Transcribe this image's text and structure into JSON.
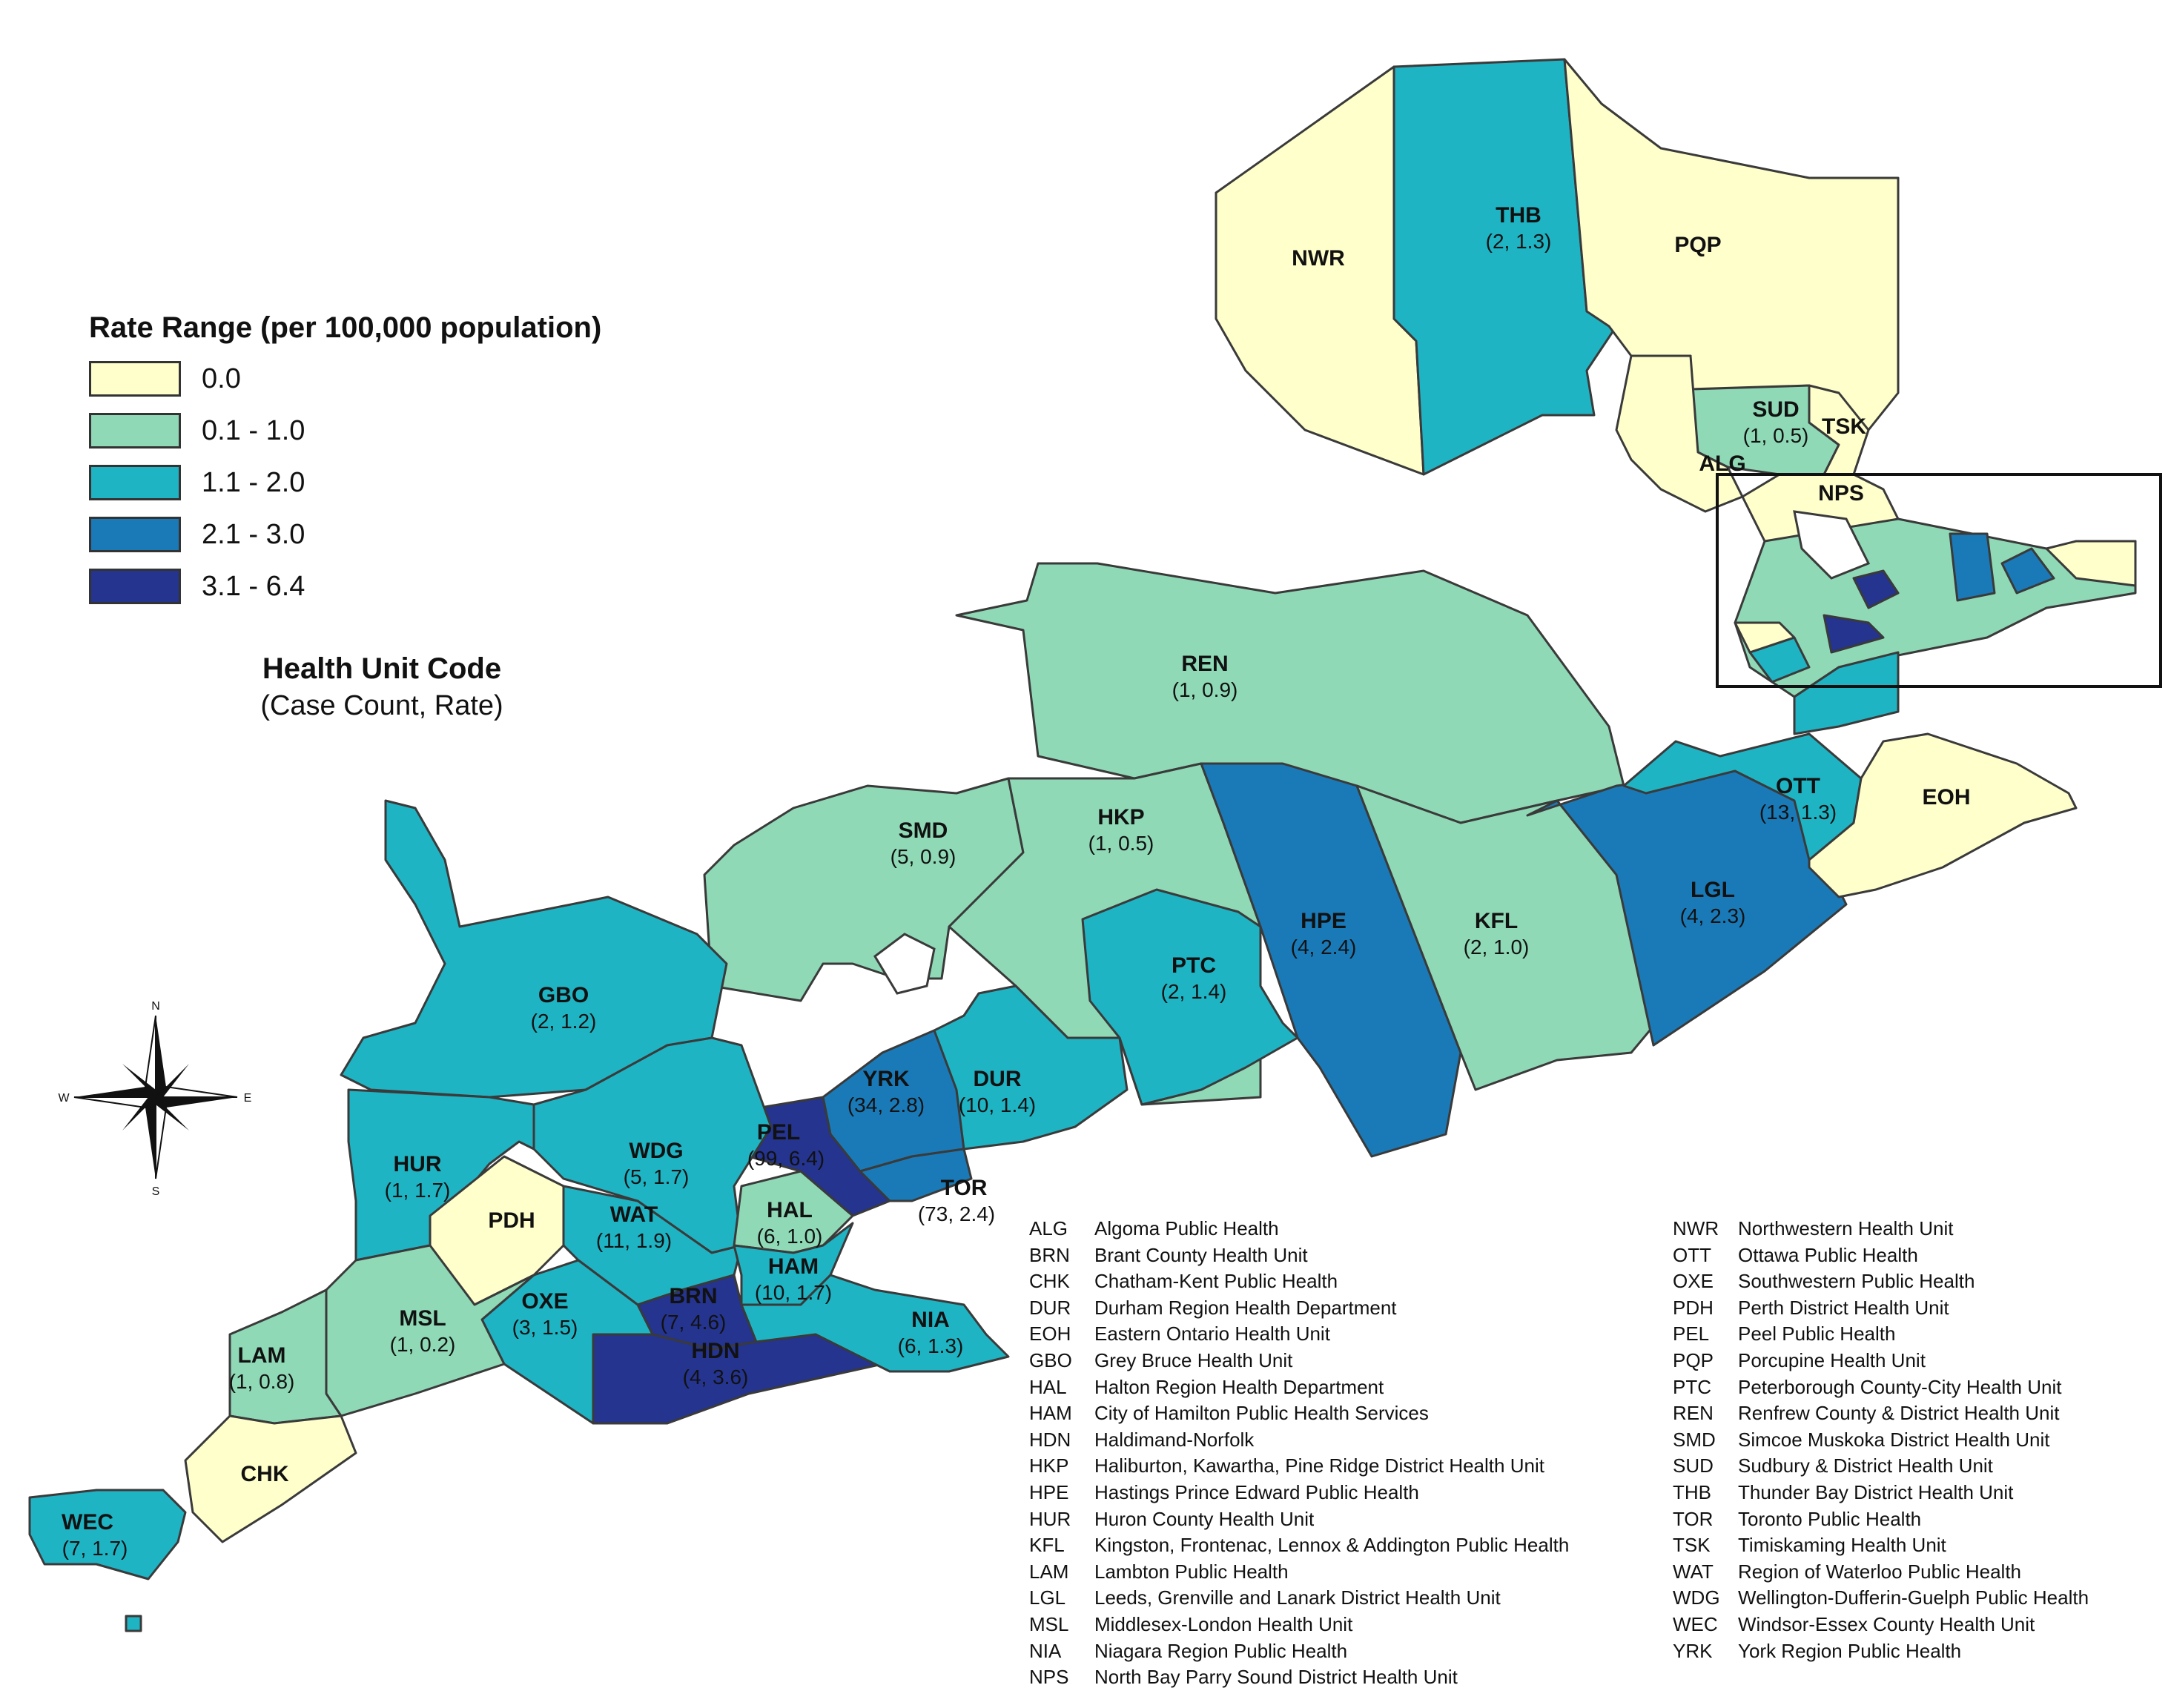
{
  "legend": {
    "title": "Rate Range (per 100,000 population)",
    "ranges": [
      {
        "label": "0.0",
        "color": "#ffffcc"
      },
      {
        "label": "0.1 - 1.0",
        "color": "#8fd9b6"
      },
      {
        "label": "1.1 - 2.0",
        "color": "#1fb4c4"
      },
      {
        "label": "2.1 - 3.0",
        "color": "#1a7ab8"
      },
      {
        "label": "3.1 - 6.4",
        "color": "#24348f"
      }
    ]
  },
  "health_unit_title": {
    "line1": "Health Unit Code",
    "line2": "(Case Count, Rate)"
  },
  "compass": {
    "north": "N",
    "south": "S",
    "east": "E",
    "west": "W"
  },
  "regions": {
    "REN": {
      "code": "REN",
      "stats": "(1, 0.9)",
      "color": "#8fd9b6"
    },
    "SMD": {
      "code": "SMD",
      "stats": "(5, 0.9)",
      "color": "#8fd9b6"
    },
    "HKP": {
      "code": "HKP",
      "stats": "(1, 0.5)",
      "color": "#8fd9b6"
    },
    "HPE": {
      "code": "HPE",
      "stats": "(4, 2.4)",
      "color": "#1a7ab8"
    },
    "KFL": {
      "code": "KFL",
      "stats": "(2, 1.0)",
      "color": "#8fd9b6"
    },
    "LGL": {
      "code": "LGL",
      "stats": "(4, 2.3)",
      "color": "#1a7ab8"
    },
    "OTT": {
      "code": "OTT",
      "stats": "(13, 1.3)",
      "color": "#1fb4c4"
    },
    "EOH": {
      "code": "EOH",
      "stats": "",
      "color": "#ffffcc"
    },
    "PTC": {
      "code": "PTC",
      "stats": "(2, 1.4)",
      "color": "#1fb4c4"
    },
    "GBO": {
      "code": "GBO",
      "stats": "(2, 1.2)",
      "color": "#1fb4c4"
    },
    "YRK": {
      "code": "YRK",
      "stats": "(34, 2.8)",
      "color": "#1a7ab8"
    },
    "DUR": {
      "code": "DUR",
      "stats": "(10, 1.4)",
      "color": "#1fb4c4"
    },
    "PEL": {
      "code": "PEL",
      "stats": "(99, 6.4)",
      "color": "#24348f"
    },
    "TOR": {
      "code": "TOR",
      "stats": "(73, 2.4)",
      "color": "#1a7ab8"
    },
    "WDG": {
      "code": "WDG",
      "stats": "(5, 1.7)",
      "color": "#1fb4c4"
    },
    "HUR": {
      "code": "HUR",
      "stats": "(1, 1.7)",
      "color": "#1fb4c4"
    },
    "PDH": {
      "code": "PDH",
      "stats": "",
      "color": "#ffffcc"
    },
    "WAT": {
      "code": "WAT",
      "stats": "(11, 1.9)",
      "color": "#1fb4c4"
    },
    "HAL": {
      "code": "HAL",
      "stats": "(6, 1.0)",
      "color": "#8fd9b6"
    },
    "HAM": {
      "code": "HAM",
      "stats": "(10, 1.7)",
      "color": "#1fb4c4"
    },
    "BRN": {
      "code": "BRN",
      "stats": "(7, 4.6)",
      "color": "#24348f"
    },
    "HDN": {
      "code": "HDN",
      "stats": "(4, 3.6)",
      "color": "#24348f"
    },
    "NIA": {
      "code": "NIA",
      "stats": "(6, 1.3)",
      "color": "#1fb4c4"
    },
    "OXE": {
      "code": "OXE",
      "stats": "(3, 1.5)",
      "color": "#1fb4c4"
    },
    "MSL": {
      "code": "MSL",
      "stats": "(1, 0.2)",
      "color": "#8fd9b6"
    },
    "LAM": {
      "code": "LAM",
      "stats": "(1, 0.8)",
      "color": "#8fd9b6"
    },
    "CHK": {
      "code": "CHK",
      "stats": "",
      "color": "#ffffcc"
    },
    "WEC": {
      "code": "WEC",
      "stats": "(7, 1.7)",
      "color": "#1fb4c4"
    }
  },
  "inset": {
    "NWR": {
      "code": "NWR",
      "stats": "",
      "color": "#ffffcc"
    },
    "THB": {
      "code": "THB",
      "stats": "(2, 1.3)",
      "color": "#1fb4c4"
    },
    "PQP": {
      "code": "PQP",
      "stats": "",
      "color": "#ffffcc"
    },
    "SUD": {
      "code": "SUD",
      "stats": "(1, 0.5)",
      "color": "#8fd9b6"
    },
    "TSK": {
      "code": "TSK",
      "stats": "",
      "color": "#ffffcc"
    },
    "ALG": {
      "code": "ALG",
      "stats": "",
      "color": "#ffffcc"
    },
    "NPS": {
      "code": "NPS",
      "stats": "",
      "color": "#ffffcc"
    }
  },
  "abbreviations_left": [
    {
      "code": "ALG",
      "name": "Algoma Public Health"
    },
    {
      "code": "BRN",
      "name": "Brant County Health Unit"
    },
    {
      "code": "CHK",
      "name": "Chatham-Kent Public Health"
    },
    {
      "code": "DUR",
      "name": "Durham Region Health Department"
    },
    {
      "code": "EOH",
      "name": "Eastern Ontario Health Unit"
    },
    {
      "code": "GBO",
      "name": "Grey Bruce Health Unit"
    },
    {
      "code": "HAL",
      "name": "Halton Region Health Department"
    },
    {
      "code": "HAM",
      "name": "City of Hamilton Public Health Services"
    },
    {
      "code": "HDN",
      "name": "Haldimand-Norfolk"
    },
    {
      "code": "HKP",
      "name": "Haliburton, Kawartha, Pine Ridge District Health Unit"
    },
    {
      "code": "HPE",
      "name": "Hastings Prince Edward Public Health"
    },
    {
      "code": "HUR",
      "name": "Huron County Health Unit"
    },
    {
      "code": "KFL",
      "name": "Kingston, Frontenac, Lennox & Addington Public Health"
    },
    {
      "code": "LAM",
      "name": "Lambton Public Health"
    },
    {
      "code": "LGL",
      "name": "Leeds, Grenville and Lanark District Health Unit"
    },
    {
      "code": "MSL",
      "name": "Middlesex-London Health Unit"
    },
    {
      "code": "NIA",
      "name": "Niagara Region Public Health"
    },
    {
      "code": "NPS",
      "name": "North Bay Parry Sound District Health Unit"
    }
  ],
  "abbreviations_right": [
    {
      "code": "NWR",
      "name": "Northwestern Health Unit"
    },
    {
      "code": "OTT",
      "name": "Ottawa Public Health"
    },
    {
      "code": "OXE",
      "name": "Southwestern Public Health"
    },
    {
      "code": "PDH",
      "name": "Perth District Health Unit"
    },
    {
      "code": "PEL",
      "name": "Peel Public Health"
    },
    {
      "code": "PQP",
      "name": "Porcupine Health Unit"
    },
    {
      "code": "PTC",
      "name": "Peterborough County-City Health Unit"
    },
    {
      "code": "REN",
      "name": "Renfrew County & District Health Unit"
    },
    {
      "code": "SMD",
      "name": "Simcoe Muskoka District Health Unit"
    },
    {
      "code": "SUD",
      "name": "Sudbury & District Health Unit"
    },
    {
      "code": "THB",
      "name": "Thunder Bay District Health Unit"
    },
    {
      "code": "TOR",
      "name": "Toronto Public Health"
    },
    {
      "code": "TSK",
      "name": "Timiskaming Health Unit"
    },
    {
      "code": "WAT",
      "name": "Region of Waterloo Public Health"
    },
    {
      "code": "WDG",
      "name": "Wellington-Dufferin-Guelph Public Health"
    },
    {
      "code": "WEC",
      "name": "Windsor-Essex County Health Unit"
    },
    {
      "code": "YRK",
      "name": "York Region Public Health"
    }
  ]
}
